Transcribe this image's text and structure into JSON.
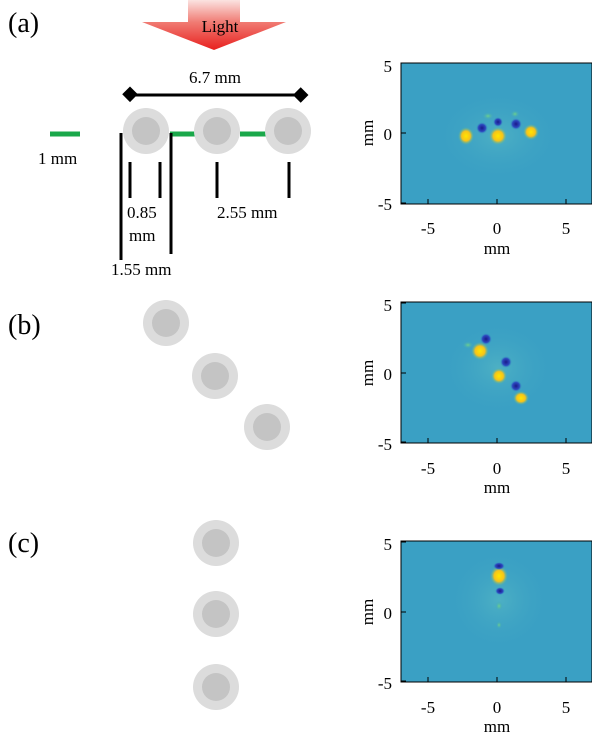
{
  "panels": [
    {
      "label": "(a)",
      "arrow_text": "Light",
      "annotations": {
        "span": "6.7 mm",
        "bar": "1 mm",
        "gap1_top": "0.85",
        "gap1_bottom": "mm",
        "pitch": "2.55 mm",
        "offset": "1.55 mm"
      },
      "arrangement": "horizontal",
      "colormap": {
        "ylabel": "mm",
        "xlabel": "mm",
        "yticks": [
          "5",
          "0",
          "-5"
        ],
        "xticks": [
          "-5",
          "0",
          "5"
        ],
        "xlim": [
          -7,
          7
        ],
        "ylim": [
          -5,
          5
        ]
      }
    },
    {
      "label": "(b)",
      "arrangement": "diagonal",
      "colormap": {
        "ylabel": "mm",
        "xlabel": "mm",
        "yticks": [
          "5",
          "0",
          "-5"
        ],
        "xticks": [
          "-5",
          "0",
          "5"
        ],
        "xlim": [
          -7,
          7
        ],
        "ylim": [
          -5,
          5
        ]
      }
    },
    {
      "label": "(c)",
      "arrangement": "vertical",
      "colormap": {
        "ylabel": "mm",
        "xlabel": "mm",
        "yticks": [
          "5",
          "0",
          "-5"
        ],
        "xticks": [
          "-5",
          "0",
          "5"
        ],
        "xlim": [
          -7,
          7
        ],
        "ylim": [
          -5,
          5
        ]
      }
    }
  ],
  "colors": {
    "background_field": "#3aa0c4",
    "phantom_outer": "#dcdcdc",
    "phantom_inner": "#c4c4c4",
    "bar": "#1aa84a",
    "arrow": "#e8201e"
  }
}
